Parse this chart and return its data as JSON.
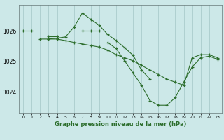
{
  "title": "Graphe pression niveau de la mer (hPa)",
  "bg_color": "#cce8e8",
  "grid_color": "#aacccc",
  "line_color": "#2d6e2d",
  "marker": "+",
  "xlabel_color": "#2d6e2d",
  "xlim": [
    -0.5,
    23.5
  ],
  "ylim": [
    1023.3,
    1026.85
  ],
  "yticks": [
    1024,
    1025,
    1026
  ],
  "xticks": [
    0,
    1,
    2,
    3,
    4,
    5,
    6,
    7,
    8,
    9,
    10,
    11,
    12,
    13,
    14,
    15,
    16,
    17,
    18,
    19,
    20,
    21,
    22,
    23
  ],
  "lines": [
    [
      1026.0,
      1026.0,
      null,
      1025.82,
      1025.82,
      null,
      null,
      1026.0,
      1026.0,
      1026.0,
      null,
      null,
      null,
      null,
      null,
      null,
      null,
      null,
      null,
      null,
      null,
      null,
      null,
      null
    ],
    [
      null,
      null,
      1025.73,
      1025.73,
      1025.76,
      1025.8,
      1026.12,
      1026.58,
      1026.38,
      1026.18,
      1025.88,
      1025.68,
      1025.45,
      1025.2,
      1024.72,
      1024.42,
      null,
      null,
      null,
      null,
      null,
      null,
      null,
      null
    ],
    [
      null,
      null,
      null,
      1025.73,
      1025.73,
      1025.68,
      1025.62,
      1025.57,
      1025.52,
      1025.47,
      1025.37,
      1025.22,
      1025.12,
      1025.02,
      1024.87,
      1024.72,
      1024.57,
      1024.42,
      1024.32,
      1024.22,
      1025.12,
      1025.22,
      1025.22,
      1025.12
    ],
    [
      null,
      null,
      null,
      null,
      null,
      null,
      null,
      null,
      null,
      null,
      1025.62,
      1025.42,
      1025.02,
      1024.62,
      1024.22,
      1023.72,
      1023.57,
      1023.57,
      1023.82,
      1024.32,
      1024.82,
      1025.12,
      1025.17,
      1025.07
    ]
  ]
}
